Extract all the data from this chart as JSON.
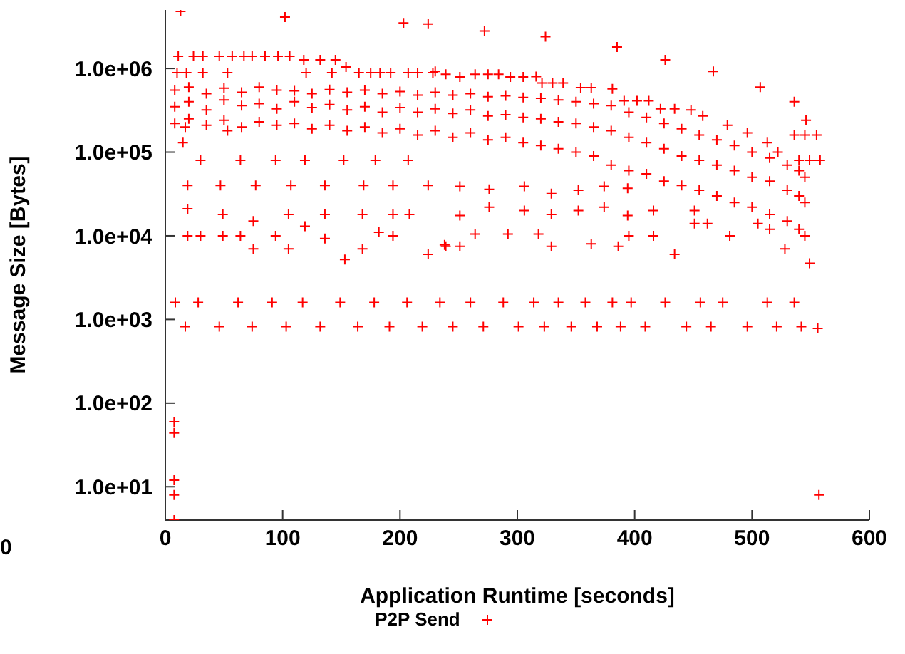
{
  "chart_data": {
    "type": "scatter",
    "xlabel": "Application Runtime [seconds]",
    "ylabel": "Message Size [Bytes]",
    "annotations": [
      "0"
    ],
    "xlim": [
      0,
      600
    ],
    "xticks": [
      0,
      100,
      200,
      300,
      400,
      500,
      600
    ],
    "ylim": [
      4,
      5000000
    ],
    "yticks": [
      {
        "value": 10,
        "label": "1.0e+01"
      },
      {
        "value": 100,
        "label": "1.0e+02"
      },
      {
        "value": 1000,
        "label": "1.0e+03"
      },
      {
        "value": 10000,
        "label": "1.0e+04"
      },
      {
        "value": 100000,
        "label": "1.0e+05"
      },
      {
        "value": 1000000,
        "label": "1.0e+06"
      }
    ],
    "log": "y",
    "grid": false,
    "legend": "bottom",
    "marker": "cross",
    "series": [
      {
        "name": "P2P Send",
        "color": "#ff0000",
        "x": [
          13,
          102,
          203,
          224,
          272,
          324,
          385,
          426,
          467,
          507,
          536,
          546,
          11,
          24,
          32,
          46,
          57,
          67,
          74,
          85,
          96,
          106,
          118,
          132,
          145,
          154,
          10,
          18,
          32,
          53,
          120,
          142,
          165,
          175,
          183,
          192,
          207,
          215,
          228,
          230,
          239,
          251,
          264,
          275,
          284,
          294,
          305,
          316,
          321,
          330,
          339,
          354,
          363,
          381,
          391,
          402,
          412,
          422,
          434,
          448,
          458,
          479,
          496,
          513,
          522,
          536,
          545,
          555,
          540,
          549,
          558,
          8,
          8,
          8,
          20,
          20,
          20,
          35,
          35,
          35,
          50,
          50,
          50,
          65,
          65,
          65,
          80,
          80,
          80,
          95,
          95,
          95,
          110,
          110,
          110,
          125,
          125,
          125,
          140,
          140,
          140,
          155,
          155,
          155,
          170,
          170,
          170,
          185,
          185,
          185,
          200,
          200,
          200,
          215,
          215,
          215,
          230,
          230,
          230,
          245,
          245,
          245,
          260,
          260,
          260,
          275,
          275,
          275,
          290,
          290,
          290,
          305,
          305,
          305,
          320,
          320,
          320,
          335,
          335,
          335,
          350,
          350,
          350,
          365,
          365,
          365,
          380,
          380,
          380,
          395,
          395,
          395,
          410,
          410,
          410,
          425,
          425,
          425,
          440,
          440,
          440,
          455,
          455,
          455,
          470,
          470,
          470,
          485,
          485,
          485,
          500,
          500,
          500,
          515,
          515,
          515,
          530,
          530,
          530,
          540,
          540,
          540,
          545,
          545,
          545,
          15,
          17,
          53,
          30,
          64,
          94,
          119,
          152,
          179,
          207,
          19,
          47,
          77,
          107,
          136,
          169,
          194,
          224,
          49,
          105,
          136,
          168,
          194,
          208,
          19,
          19,
          30,
          49,
          64,
          94,
          75,
          75,
          105,
          153,
          119,
          136,
          168,
          182,
          194,
          224,
          238,
          251,
          276,
          306,
          329,
          352,
          374,
          394,
          251,
          276,
          306,
          329,
          352,
          374,
          394,
          416,
          451,
          264,
          292,
          318,
          239,
          251,
          329,
          363,
          386,
          395,
          416,
          434,
          451,
          462,
          481,
          505,
          515,
          528,
          549,
          8.5,
          28,
          62,
          91,
          117,
          149,
          178,
          206,
          234,
          260,
          288,
          314,
          335,
          358,
          381,
          397,
          426,
          456,
          475,
          513,
          536,
          17,
          46,
          74,
          103,
          132,
          164,
          191,
          219,
          245,
          271,
          301,
          323,
          346,
          368,
          388,
          409,
          444,
          465,
          496,
          521,
          542,
          556,
          7.5,
          7.5,
          7.5,
          7.5,
          7.5,
          557
        ],
        "values": [
          4800000,
          4100000,
          3500000,
          3400000,
          2800000,
          2400000,
          1800000,
          1270000,
          920000,
          600000,
          400000,
          240000,
          1400000,
          1400000,
          1400000,
          1400000,
          1400000,
          1400000,
          1400000,
          1400000,
          1400000,
          1400000,
          1270000,
          1270000,
          1270000,
          1040000,
          890000,
          890000,
          890000,
          890000,
          890000,
          890000,
          890000,
          890000,
          890000,
          890000,
          890000,
          890000,
          890000,
          920000,
          850000,
          790000,
          850000,
          850000,
          850000,
          790000,
          790000,
          800000,
          670000,
          670000,
          670000,
          590000,
          590000,
          570000,
          410000,
          410000,
          410000,
          330000,
          330000,
          320000,
          270000,
          210000,
          170000,
          130000,
          100000,
          160000,
          160000,
          160000,
          80000,
          80000,
          80000,
          550000,
          350000,
          220000,
          600000,
          400000,
          250000,
          500000,
          320000,
          210000,
          580000,
          420000,
          240000,
          520000,
          360000,
          200000,
          600000,
          380000,
          230000,
          550000,
          330000,
          210000,
          540000,
          400000,
          220000,
          500000,
          340000,
          190000,
          560000,
          370000,
          210000,
          520000,
          320000,
          180000,
          550000,
          350000,
          200000,
          500000,
          300000,
          170000,
          530000,
          340000,
          190000,
          480000,
          300000,
          160000,
          520000,
          330000,
          180000,
          480000,
          290000,
          150000,
          500000,
          320000,
          170000,
          460000,
          270000,
          140000,
          470000,
          280000,
          150000,
          450000,
          260000,
          130000,
          440000,
          250000,
          120000,
          420000,
          230000,
          110000,
          400000,
          220000,
          100000,
          380000,
          200000,
          90000,
          360000,
          180000,
          70000,
          300000,
          150000,
          60000,
          260000,
          130000,
          55000,
          220000,
          110000,
          45000,
          190000,
          90000,
          40000,
          160000,
          80000,
          35000,
          140000,
          70000,
          30000,
          120000,
          60000,
          25000,
          100000,
          50000,
          22000,
          85000,
          45000,
          18000,
          70000,
          35000,
          15000,
          60000,
          30000,
          12000,
          50000,
          25000,
          10000,
          130000,
          200000,
          180000,
          80000,
          80000,
          80000,
          80000,
          80000,
          80000,
          80000,
          40000,
          40000,
          40000,
          40000,
          40000,
          40000,
          40000,
          40000,
          18000,
          18000,
          18000,
          18000,
          18000,
          18000,
          21000,
          10000,
          10000,
          10000,
          10000,
          10000,
          15000,
          7000,
          7000,
          5200,
          13000,
          9300,
          7000,
          11000,
          10000,
          6000,
          7800,
          39000,
          36000,
          39000,
          32000,
          35000,
          39000,
          37000,
          17500,
          22000,
          20000,
          18000,
          20000,
          22000,
          17500,
          20000,
          20000,
          10500,
          10500,
          10500,
          7500,
          7500,
          7500,
          8000,
          7500,
          10000,
          10000,
          6000,
          14000,
          14000,
          10000,
          14000,
          12000,
          7000,
          4700,
          1600,
          1600,
          1600,
          1600,
          1600,
          1600,
          1600,
          1600,
          1600,
          1600,
          1600,
          1600,
          1600,
          1600,
          1600,
          1600,
          1600,
          1600,
          1600,
          1600,
          1600,
          820,
          820,
          820,
          820,
          820,
          820,
          820,
          820,
          820,
          820,
          820,
          820,
          820,
          820,
          820,
          820,
          820,
          820,
          820,
          820,
          820,
          780,
          60,
          44,
          12,
          8,
          4,
          8
        ]
      }
    ]
  }
}
